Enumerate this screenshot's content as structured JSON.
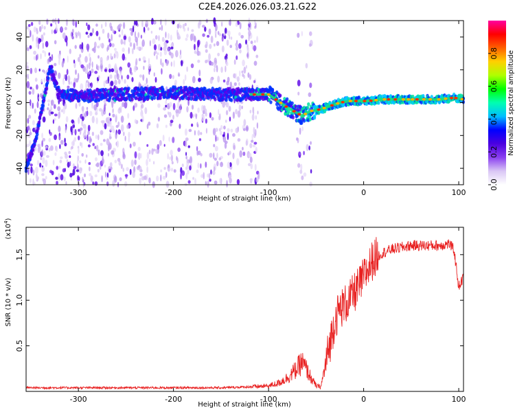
{
  "page_title": "C2E4.2026.026.03.21.G22",
  "colors": {
    "line": "#e82020",
    "axes": "#000000",
    "background": "#ffffff"
  },
  "chart_data": [
    {
      "type": "heatmap",
      "name": "spectrogram",
      "title": "C2E4.2026.026.03.21.G22",
      "xlabel": "Height of straight line (km)",
      "ylabel": "Frequency (Hz)",
      "xlim": [
        -355,
        105
      ],
      "ylim": [
        -50,
        50
      ],
      "xticks": [
        -300,
        -200,
        -100,
        0,
        100
      ],
      "yticks": [
        -40,
        -20,
        0,
        20,
        40
      ],
      "grid": false,
      "ridge": {
        "description": "dominant frequency track (Hz) vs height (km)",
        "x": [
          -355,
          -345,
          -335,
          -330,
          -320,
          -300,
          -260,
          -200,
          -150,
          -120,
          -100,
          -80,
          -65,
          -55,
          -45,
          -35,
          -25,
          -15,
          -5,
          5,
          20,
          40,
          60,
          80,
          95,
          105
        ],
        "y": [
          -40,
          -22,
          5,
          22,
          5,
          4,
          5,
          6,
          5,
          5,
          5,
          -3,
          -8,
          -5,
          -4,
          -2,
          0,
          1,
          1,
          1,
          2,
          2,
          2,
          2,
          3,
          2
        ]
      },
      "colorbar": {
        "label": "Normalized spectral amplitude",
        "range": [
          0,
          1
        ],
        "ticks": [
          "0.0",
          "0.2",
          "0.4",
          "0.6",
          "0.8"
        ],
        "tick_values": [
          0,
          0.2,
          0.4,
          0.6,
          0.8
        ],
        "colormap": [
          "#ffffff",
          "#d9c6f5",
          "#8a3ff0",
          "#4b00e0",
          "#0000ff",
          "#00bfff",
          "#00ffb0",
          "#00ff00",
          "#b0ff00",
          "#ffd000",
          "#ff6000",
          "#ff0000",
          "#ff00a0"
        ]
      }
    },
    {
      "type": "line",
      "name": "snr",
      "xlabel": "Height of straight line (km)",
      "ylabel": "SNR (10 * v/v)",
      "yscale_note": "(x10",
      "yscale_exp": "4",
      "xlim": [
        -355,
        105
      ],
      "ylim": [
        0,
        1.8
      ],
      "xticks": [
        -300,
        -200,
        -100,
        0,
        100
      ],
      "yticks": [
        0.5,
        1.0,
        1.5
      ],
      "ytick_labels": [
        "0.5",
        "1.0",
        "1.5"
      ],
      "grid": false,
      "series": [
        {
          "name": "SNR",
          "x": [
            -355,
            -300,
            -250,
            -200,
            -150,
            -120,
            -100,
            -90,
            -80,
            -70,
            -65,
            -60,
            -55,
            -50,
            -45,
            -40,
            -35,
            -30,
            -25,
            -20,
            -15,
            -10,
            -5,
            0,
            5,
            10,
            20,
            30,
            40,
            50,
            60,
            70,
            80,
            90,
            95,
            100,
            105
          ],
          "y": [
            0.04,
            0.04,
            0.04,
            0.04,
            0.04,
            0.05,
            0.06,
            0.09,
            0.15,
            0.25,
            0.32,
            0.24,
            0.14,
            0.06,
            0.05,
            0.3,
            0.55,
            0.8,
            0.9,
            0.95,
            1.0,
            1.08,
            1.15,
            1.25,
            1.35,
            1.45,
            1.52,
            1.56,
            1.58,
            1.6,
            1.6,
            1.6,
            1.6,
            1.62,
            1.55,
            1.15,
            1.25
          ]
        }
      ]
    }
  ]
}
